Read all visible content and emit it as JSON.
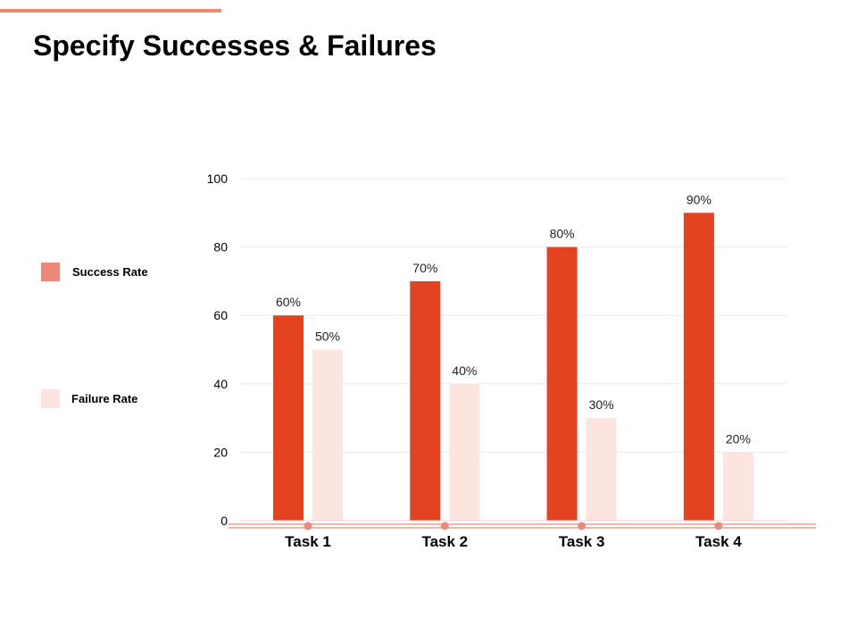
{
  "slide": {
    "title": "Specify Successes & Failures"
  },
  "legend": [
    {
      "label": "Success Rate",
      "color": "#ec8a78"
    },
    {
      "label": "Failure Rate",
      "color": "#fce4df"
    }
  ],
  "chart_data": {
    "type": "bar",
    "categories": [
      "Task 1",
      "Task 2",
      "Task 3",
      "Task 4"
    ],
    "series": [
      {
        "name": "Success Rate",
        "values": [
          60,
          70,
          80,
          90
        ],
        "labels": [
          "60%",
          "70%",
          "80%",
          "90%"
        ],
        "color": "#e44322"
      },
      {
        "name": "Failure Rate",
        "values": [
          50,
          40,
          30,
          20
        ],
        "labels": [
          "50%",
          "40%",
          "30%",
          "20%"
        ],
        "color": "#fce4df"
      }
    ],
    "ylim": [
      0,
      100
    ],
    "yticks": [
      0,
      20,
      40,
      60,
      80,
      100
    ],
    "grid": true,
    "legend_position": "left",
    "axis_color": "#ec8a78"
  }
}
